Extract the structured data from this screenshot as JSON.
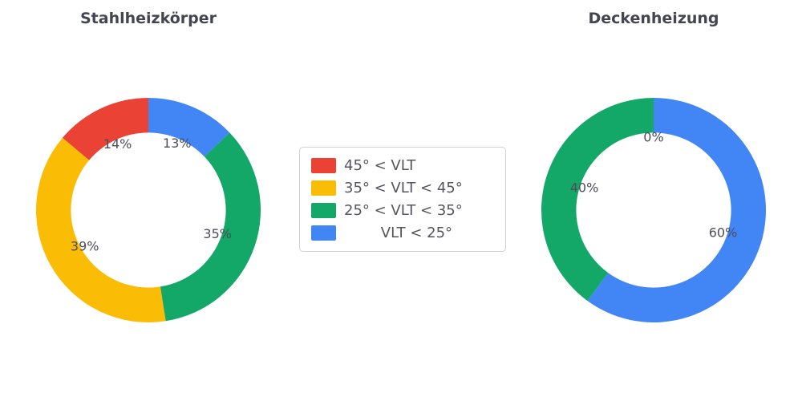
{
  "page": {
    "background_color": "#ffffff",
    "text_color": "#4d4d59"
  },
  "chart_data": [
    {
      "type": "pie",
      "title": "Stahlheizkörper",
      "labels": [
        "45° < VLT",
        "35° < VLT < 45°",
        "25° < VLT < 35°",
        "VLT < 25°"
      ],
      "values": [
        14,
        39,
        35,
        13
      ],
      "value_labels": [
        "14%",
        "39%",
        "35%",
        "13%"
      ],
      "colors": [
        "#EA4335",
        "#FBBC05",
        "#13A768",
        "#4285F4"
      ],
      "hole": 0.69,
      "start_angle_deg": 0,
      "direction": "counterclockwise"
    },
    {
      "type": "pie",
      "title": "Deckenheizung",
      "labels": [
        "45° < VLT",
        "35° < VLT < 45°",
        "25° < VLT < 35°",
        "VLT < 25°"
      ],
      "values": [
        0,
        0,
        40,
        60
      ],
      "value_labels": [
        "0%",
        "0%",
        "40%",
        "60%"
      ],
      "colors": [
        "#EA4335",
        "#FBBC05",
        "#13A768",
        "#4285F4"
      ],
      "hole": 0.69,
      "start_angle_deg": 0,
      "direction": "counterclockwise"
    }
  ],
  "legend": {
    "position": "center",
    "items": [
      {
        "label": "45° < VLT",
        "color": "#EA4335"
      },
      {
        "label": "35° < VLT < 45°",
        "color": "#FBBC05"
      },
      {
        "label": "25° < VLT < 35°",
        "color": "#13A768"
      },
      {
        "label": "        VLT < 25°",
        "color": "#4285F4"
      }
    ]
  }
}
